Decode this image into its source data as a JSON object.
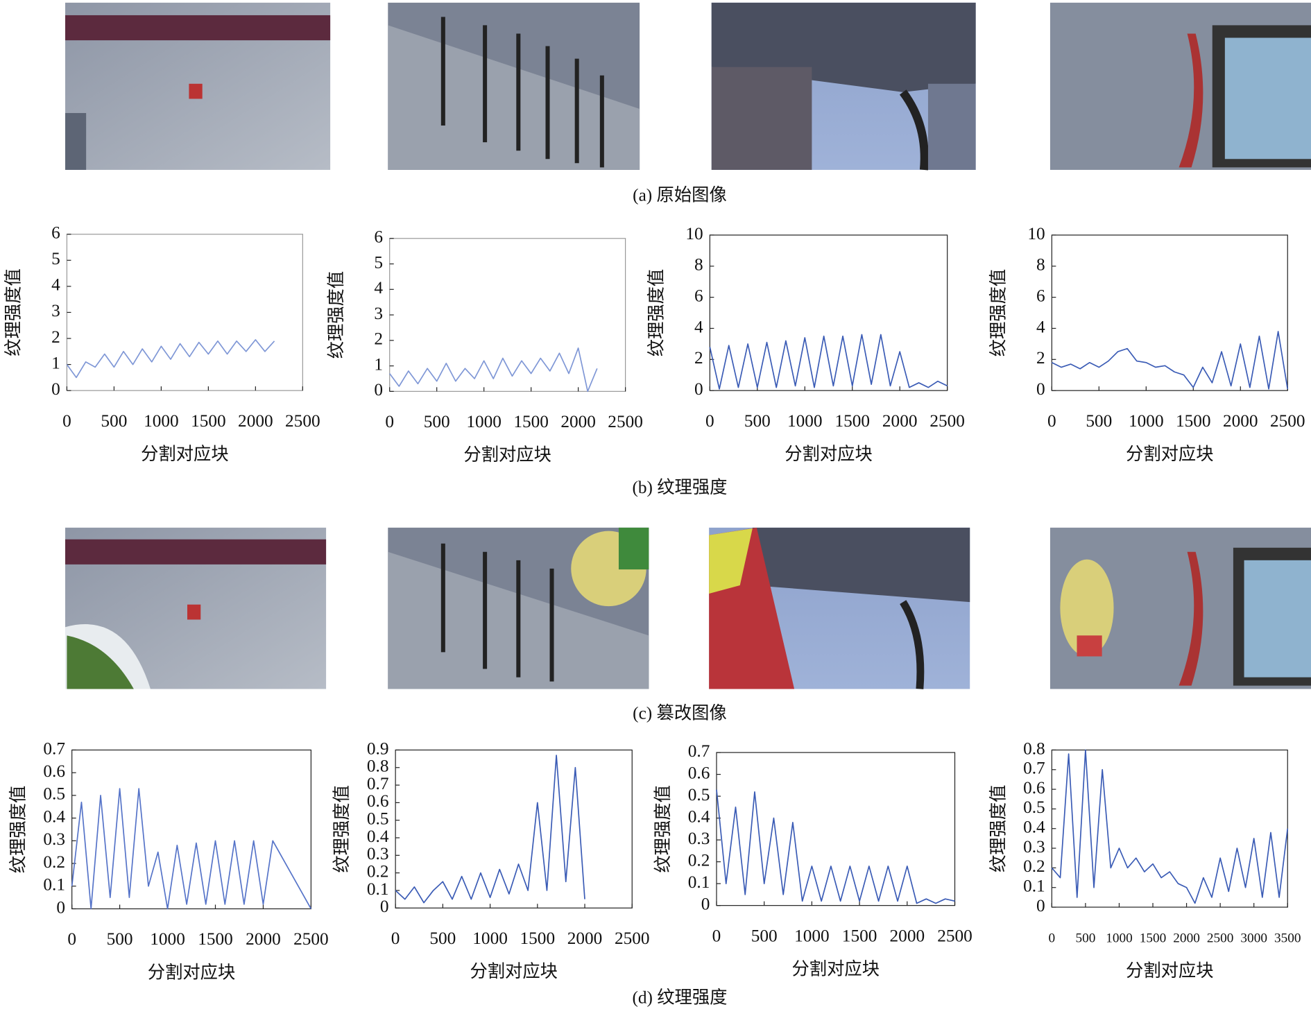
{
  "captions": [
    "(a) 原始图像",
    "(b) 纹理强度",
    "(c) 篡改图像",
    "(d) 纹理强度"
  ],
  "chart_data": [
    {
      "type": "line",
      "xlabel": "分割对应块",
      "ylabel": "纹理强度值",
      "color": "#7f97d6",
      "xlim": [
        0,
        2500
      ],
      "ylim": [
        0,
        6
      ],
      "xticks": [
        0,
        500,
        1000,
        1500,
        2000,
        2500
      ],
      "yticks": [
        0,
        1,
        2,
        3,
        4,
        5,
        6
      ],
      "x": [
        0,
        100,
        200,
        300,
        400,
        500,
        600,
        700,
        800,
        900,
        1000,
        1100,
        1200,
        1300,
        1400,
        1500,
        1600,
        1700,
        1800,
        1900,
        2000,
        2100,
        2200
      ],
      "values": [
        1.0,
        0.5,
        1.1,
        0.9,
        1.4,
        0.9,
        1.5,
        1.0,
        1.6,
        1.1,
        1.7,
        1.2,
        1.8,
        1.3,
        1.85,
        1.4,
        1.9,
        1.4,
        1.9,
        1.5,
        1.95,
        1.5,
        1.9
      ]
    },
    {
      "type": "line",
      "xlabel": "分割对应块",
      "ylabel": "纹理强度值",
      "color": "#7f97d6",
      "xlim": [
        0,
        2500
      ],
      "ylim": [
        0,
        6
      ],
      "xticks": [
        0,
        500,
        1000,
        1500,
        2000,
        2500
      ],
      "yticks": [
        0,
        1,
        2,
        3,
        4,
        5,
        6
      ],
      "x": [
        0,
        100,
        200,
        300,
        400,
        500,
        600,
        700,
        800,
        900,
        1000,
        1100,
        1200,
        1300,
        1400,
        1500,
        1600,
        1700,
        1800,
        1900,
        2000,
        2100,
        2200
      ],
      "values": [
        0.7,
        0.2,
        0.8,
        0.3,
        0.9,
        0.4,
        1.1,
        0.4,
        0.9,
        0.5,
        1.2,
        0.5,
        1.3,
        0.6,
        1.2,
        0.7,
        1.3,
        0.8,
        1.5,
        0.7,
        1.7,
        0.0,
        0.9
      ]
    },
    {
      "type": "line",
      "xlabel": "分割对应块",
      "ylabel": "纹理强度值",
      "color": "#3a5bb5",
      "xlim": [
        0,
        2500
      ],
      "ylim": [
        0,
        10
      ],
      "xticks": [
        0,
        500,
        1000,
        1500,
        2000,
        2500
      ],
      "yticks": [
        0,
        2,
        4,
        6,
        8,
        10
      ],
      "x": [
        0,
        100,
        200,
        300,
        400,
        500,
        600,
        700,
        800,
        900,
        1000,
        1100,
        1200,
        1300,
        1400,
        1500,
        1600,
        1700,
        1800,
        1900,
        2000,
        2100,
        2200,
        2300,
        2400,
        2500
      ],
      "values": [
        2.8,
        0.1,
        2.9,
        0.2,
        3.0,
        0.2,
        3.1,
        0.2,
        3.2,
        0.3,
        3.4,
        0.2,
        3.5,
        0.3,
        3.5,
        0.3,
        3.6,
        0.4,
        3.6,
        0.3,
        2.5,
        0.2,
        0.5,
        0.2,
        0.6,
        0.3
      ]
    },
    {
      "type": "line",
      "xlabel": "分割对应块",
      "ylabel": "纹理强度值",
      "color": "#3a5bb5",
      "xlim": [
        0,
        2500
      ],
      "ylim": [
        0,
        10
      ],
      "xticks": [
        0,
        500,
        1000,
        1500,
        2000,
        2500
      ],
      "yticks": [
        0,
        2,
        4,
        6,
        8,
        10
      ],
      "x": [
        0,
        100,
        200,
        300,
        400,
        500,
        600,
        700,
        800,
        900,
        1000,
        1100,
        1200,
        1300,
        1400,
        1500,
        1600,
        1700,
        1800,
        1900,
        2000,
        2100,
        2200,
        2300,
        2400,
        2500
      ],
      "values": [
        1.8,
        1.5,
        1.7,
        1.4,
        1.8,
        1.5,
        1.9,
        2.5,
        2.7,
        1.9,
        1.8,
        1.5,
        1.6,
        1.2,
        1.0,
        0.2,
        1.5,
        0.5,
        2.5,
        0.3,
        3.0,
        0.2,
        3.5,
        0.1,
        3.8,
        0.1
      ]
    },
    {
      "type": "line",
      "xlabel": "分割对应块",
      "ylabel": "纹理强度值",
      "color": "#5573c8",
      "xlim": [
        0,
        2500
      ],
      "ylim": [
        0,
        0.7
      ],
      "xticks": [
        0,
        500,
        1000,
        1500,
        2000,
        2500
      ],
      "yticks": [
        0,
        0.1,
        0.2,
        0.3,
        0.4,
        0.5,
        0.6,
        0.7
      ],
      "x": [
        0,
        100,
        200,
        300,
        400,
        500,
        600,
        700,
        800,
        900,
        1000,
        1100,
        1200,
        1300,
        1400,
        1500,
        1600,
        1700,
        1800,
        1900,
        2000,
        2100,
        2500
      ],
      "values": [
        0.1,
        0.47,
        0.0,
        0.5,
        0.05,
        0.53,
        0.05,
        0.53,
        0.1,
        0.25,
        0.0,
        0.28,
        0.02,
        0.29,
        0.02,
        0.3,
        0.02,
        0.3,
        0.02,
        0.3,
        0.02,
        0.3,
        0.0
      ]
    },
    {
      "type": "line",
      "xlabel": "分割对应块",
      "ylabel": "纹理强度值",
      "color": "#3a5bb5",
      "xlim": [
        0,
        2500
      ],
      "ylim": [
        0,
        0.9
      ],
      "xticks": [
        0,
        500,
        1000,
        1500,
        2000,
        2500
      ],
      "yticks": [
        0,
        0.1,
        0.2,
        0.3,
        0.4,
        0.5,
        0.6,
        0.7,
        0.8,
        0.9
      ],
      "x": [
        0,
        100,
        200,
        300,
        400,
        500,
        600,
        700,
        800,
        900,
        1000,
        1100,
        1200,
        1300,
        1400,
        1500,
        1600,
        1700,
        1800,
        1900,
        2000
      ],
      "values": [
        0.1,
        0.05,
        0.12,
        0.03,
        0.1,
        0.15,
        0.05,
        0.18,
        0.05,
        0.2,
        0.06,
        0.22,
        0.08,
        0.25,
        0.1,
        0.6,
        0.1,
        0.87,
        0.15,
        0.8,
        0.05
      ]
    },
    {
      "type": "line",
      "xlabel": "分割对应块",
      "ylabel": "纹理强度值",
      "color": "#3a5bb5",
      "xlim": [
        0,
        2500
      ],
      "ylim": [
        0,
        0.7
      ],
      "xticks": [
        0,
        500,
        1000,
        1500,
        2000,
        2500
      ],
      "yticks": [
        0,
        0.1,
        0.2,
        0.3,
        0.4,
        0.5,
        0.6,
        0.7
      ],
      "x": [
        0,
        100,
        200,
        300,
        400,
        500,
        600,
        700,
        800,
        900,
        1000,
        1100,
        1200,
        1300,
        1400,
        1500,
        1600,
        1700,
        1800,
        1900,
        2000,
        2100,
        2200,
        2300,
        2400,
        2500
      ],
      "values": [
        0.53,
        0.1,
        0.45,
        0.05,
        0.52,
        0.1,
        0.4,
        0.05,
        0.38,
        0.02,
        0.18,
        0.02,
        0.18,
        0.02,
        0.18,
        0.02,
        0.18,
        0.02,
        0.18,
        0.02,
        0.18,
        0.01,
        0.03,
        0.01,
        0.03,
        0.02
      ]
    },
    {
      "type": "line",
      "xlabel": "分割对应块",
      "ylabel": "纹理强度值",
      "color": "#3a5bb5",
      "xlim": [
        0,
        3500
      ],
      "ylim": [
        0,
        0.8
      ],
      "xticks": [
        0,
        500,
        1000,
        1500,
        2000,
        2500,
        3000,
        3500
      ],
      "yticks": [
        0,
        0.1,
        0.2,
        0.3,
        0.4,
        0.5,
        0.6,
        0.7,
        0.8
      ],
      "x": [
        0,
        125,
        250,
        375,
        500,
        625,
        750,
        875,
        1000,
        1125,
        1250,
        1375,
        1500,
        1625,
        1750,
        1875,
        2000,
        2125,
        2250,
        2375,
        2500,
        2625,
        2750,
        2875,
        3000,
        3125,
        3250,
        3375,
        3500
      ],
      "values": [
        0.2,
        0.15,
        0.78,
        0.05,
        0.8,
        0.1,
        0.7,
        0.2,
        0.3,
        0.2,
        0.25,
        0.18,
        0.22,
        0.15,
        0.18,
        0.12,
        0.1,
        0.02,
        0.15,
        0.05,
        0.25,
        0.08,
        0.3,
        0.1,
        0.35,
        0.05,
        0.38,
        0.05,
        0.4
      ]
    }
  ]
}
